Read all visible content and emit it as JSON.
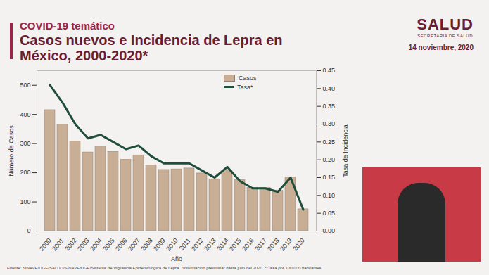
{
  "header": {
    "logo": "SALUD",
    "logo_sub": "SECRETARÍA DE SALUD",
    "date": "14 noviembre, 2020"
  },
  "chart_data": {
    "type": "bar",
    "subtitle": "COVID-19 temático",
    "title": "Casos nuevos e Incidencia de Lepra en México, 2000-2020*",
    "x_label": "Año",
    "y_label": "Número de Casos",
    "y2_label": "Tasa de Incidencia",
    "categories": [
      "2000",
      "2001",
      "2002",
      "2003",
      "2004",
      "2005",
      "2006",
      "2007",
      "2008",
      "2009",
      "2010",
      "2011",
      "2012",
      "2013",
      "2014",
      "2015",
      "2016",
      "2017",
      "2018",
      "2019",
      "2020"
    ],
    "series": [
      {
        "name": "Casos",
        "type": "bar",
        "color": "#c8ae94",
        "values": [
          415,
          365,
          308,
          270,
          288,
          272,
          245,
          260,
          225,
          210,
          212,
          215,
          198,
          178,
          208,
          175,
          148,
          148,
          138,
          185,
          75
        ]
      },
      {
        "name": "Tasa*",
        "type": "line",
        "axis": "y2",
        "color": "#1f4e3d",
        "values": [
          0.41,
          0.36,
          0.3,
          0.26,
          0.27,
          0.25,
          0.23,
          0.24,
          0.21,
          0.19,
          0.19,
          0.19,
          0.17,
          0.15,
          0.18,
          0.14,
          0.12,
          0.12,
          0.11,
          0.15,
          0.06
        ]
      }
    ],
    "ylim": [
      0,
      550
    ],
    "yticks": [
      0,
      100,
      200,
      300,
      400,
      500
    ],
    "y2lim": [
      0,
      0.45
    ],
    "y2ticks": [
      {
        "value": 0,
        "label": "0.00"
      },
      {
        "value": 0.05,
        "label": "0.05"
      },
      {
        "value": 0.1,
        "label": "0.10"
      },
      {
        "value": 0.15,
        "label": "0.15"
      },
      {
        "value": 0.2,
        "label": "0.20"
      },
      {
        "value": 0.25,
        "label": "0.25"
      },
      {
        "value": 0.3,
        "label": "0.30"
      },
      {
        "value": 0.35,
        "label": "0.35"
      },
      {
        "value": 0.4,
        "label": "0.40"
      },
      {
        "value": 0.45,
        "label": "0.45"
      }
    ],
    "grid": false,
    "legend": "top-right"
  },
  "footer": "Fuente: SINAVE/DGE/SALUD/SINAVE/DGE/Sistema de Vigilancia Epidemiológica de Lepra. *Información preliminar hasta julio del 2020. **Tasa por 100,000 habitantes."
}
